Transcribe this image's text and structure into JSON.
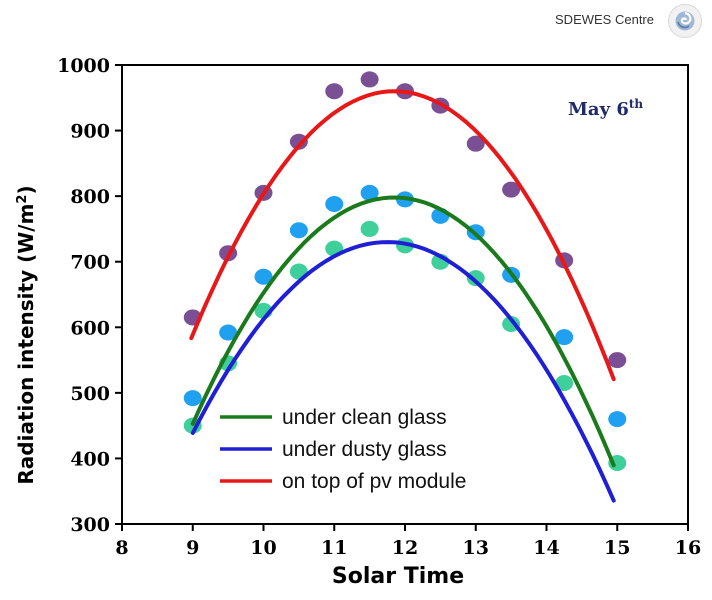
{
  "header": {
    "brand_name": "SDEWES Centre",
    "logo_icon": "sdewes-swirl-logo-icon"
  },
  "chart_data": {
    "type": "scatter",
    "title": "",
    "annotation": {
      "text": "May 6",
      "superscript": "th"
    },
    "xlabel": "Solar Time",
    "ylabel": "Radiation intensity (W/m",
    "ylabel_superscript": "2",
    "ylabel_suffix": ")",
    "xlim": [
      8,
      16
    ],
    "ylim": [
      300,
      1000
    ],
    "xticks": [
      8,
      9,
      10,
      11,
      12,
      13,
      14,
      15,
      16
    ],
    "yticks": [
      300,
      400,
      500,
      600,
      700,
      800,
      900,
      1000
    ],
    "legend_position": "bottom-center",
    "series": [
      {
        "name": "under clean glass",
        "line_color": "#1b7a1b",
        "marker_color": "#3ecf9a",
        "points": [
          {
            "x": 9.0,
            "y": 450
          },
          {
            "x": 9.5,
            "y": 545
          },
          {
            "x": 10.0,
            "y": 625
          },
          {
            "x": 10.5,
            "y": 685
          },
          {
            "x": 11.0,
            "y": 720
          },
          {
            "x": 11.5,
            "y": 750
          },
          {
            "x": 12.0,
            "y": 725
          },
          {
            "x": 12.5,
            "y": 700
          },
          {
            "x": 13.0,
            "y": 675
          },
          {
            "x": 13.5,
            "y": 605
          },
          {
            "x": 14.25,
            "y": 515
          },
          {
            "x": 15.0,
            "y": 393
          }
        ],
        "fit": {
          "vertex_x": 11.85,
          "vertex_y": 798,
          "curvature": -42.5,
          "x_range": [
            9.0,
            14.95
          ]
        }
      },
      {
        "name": "under dusty glass",
        "line_color": "#1f1fd6",
        "marker_color": "#1fa0f0",
        "points": [
          {
            "x": 9.0,
            "y": 492
          },
          {
            "x": 9.5,
            "y": 592
          },
          {
            "x": 10.0,
            "y": 677
          },
          {
            "x": 10.5,
            "y": 748
          },
          {
            "x": 11.0,
            "y": 788
          },
          {
            "x": 11.5,
            "y": 805
          },
          {
            "x": 12.0,
            "y": 795
          },
          {
            "x": 12.5,
            "y": 770
          },
          {
            "x": 13.0,
            "y": 745
          },
          {
            "x": 13.5,
            "y": 680
          },
          {
            "x": 14.25,
            "y": 585
          },
          {
            "x": 15.0,
            "y": 460
          }
        ],
        "fit": {
          "vertex_x": 11.75,
          "vertex_y": 730,
          "curvature": -38.5,
          "x_range": [
            9.0,
            14.95
          ]
        }
      },
      {
        "name": "on top of pv module",
        "line_color": "#e81818",
        "marker_color": "#7a4f93",
        "points": [
          {
            "x": 9.0,
            "y": 615
          },
          {
            "x": 9.5,
            "y": 713
          },
          {
            "x": 10.0,
            "y": 805
          },
          {
            "x": 10.5,
            "y": 883
          },
          {
            "x": 11.0,
            "y": 960
          },
          {
            "x": 11.5,
            "y": 978
          },
          {
            "x": 12.0,
            "y": 960
          },
          {
            "x": 12.5,
            "y": 938
          },
          {
            "x": 13.0,
            "y": 880
          },
          {
            "x": 13.5,
            "y": 810
          },
          {
            "x": 14.25,
            "y": 702
          },
          {
            "x": 15.0,
            "y": 550
          }
        ],
        "fit": {
          "vertex_x": 11.85,
          "vertex_y": 960,
          "curvature": -45.7,
          "x_range": [
            8.98,
            14.95
          ]
        }
      }
    ]
  }
}
